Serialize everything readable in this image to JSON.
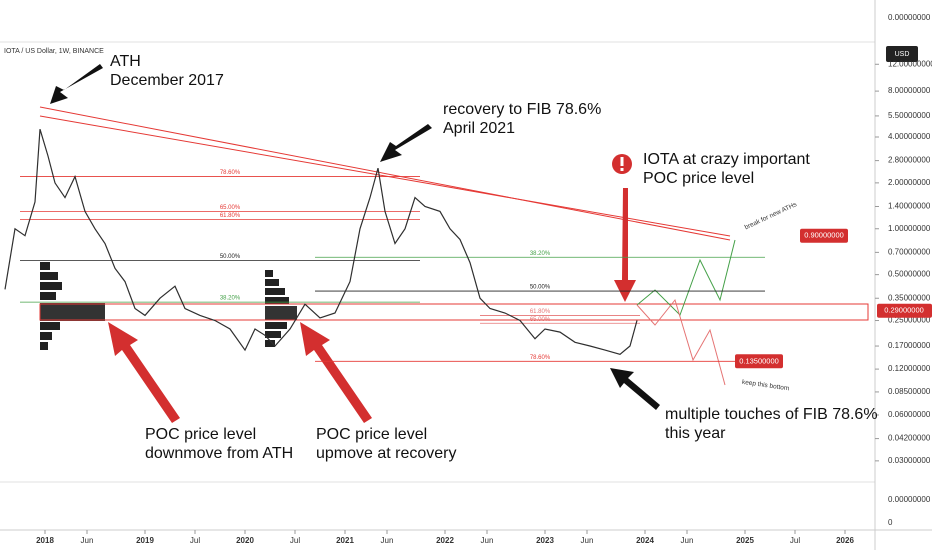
{
  "chart_data": {
    "type": "line",
    "header": "IOTA / US Dollar, 1W, BINANCE",
    "currency": "USD",
    "log_scale": true,
    "color": "#2f2f2f",
    "x": [
      2017.6,
      2017.7,
      2017.8,
      2017.9,
      2017.95,
      2018.03,
      2018.1,
      2018.2,
      2018.3,
      2018.4,
      2018.5,
      2018.6,
      2018.7,
      2018.8,
      2018.9,
      2019.0,
      2019.15,
      2019.3,
      2019.4,
      2019.55,
      2019.7,
      2019.85,
      2020.0,
      2020.1,
      2020.2,
      2020.3,
      2020.45,
      2020.6,
      2020.75,
      2020.9,
      2021.05,
      2021.15,
      2021.25,
      2021.33,
      2021.4,
      2021.5,
      2021.6,
      2021.7,
      2021.8,
      2021.95,
      2022.05,
      2022.15,
      2022.25,
      2022.35,
      2022.45,
      2022.6,
      2022.75,
      2022.9,
      2023.0,
      2023.15,
      2023.3,
      2023.45,
      2023.6,
      2023.75,
      2023.85,
      2023.92
    ],
    "values": [
      0.4,
      1.0,
      0.9,
      1.5,
      4.5,
      3.0,
      2.0,
      1.6,
      2.2,
      1.3,
      1.0,
      0.8,
      0.55,
      0.45,
      0.3,
      0.27,
      0.35,
      0.42,
      0.3,
      0.27,
      0.25,
      0.22,
      0.16,
      0.22,
      0.2,
      0.17,
      0.22,
      0.32,
      0.26,
      0.28,
      0.45,
      1.0,
      1.6,
      2.5,
      1.3,
      0.8,
      1.0,
      1.6,
      1.4,
      1.3,
      1.0,
      0.85,
      0.6,
      0.35,
      0.3,
      0.28,
      0.25,
      0.19,
      0.22,
      0.21,
      0.18,
      0.17,
      0.16,
      0.15,
      0.17,
      0.25
    ],
    "xlim": [
      2017.55,
      2026.3
    ],
    "xticks": [
      2018,
      {
        "value": 2018.42,
        "label": "Jun"
      },
      2019,
      {
        "value": 2019.5,
        "label": "Jul"
      },
      2020,
      {
        "value": 2020.5,
        "label": "Jul"
      },
      2021,
      {
        "value": 2021.42,
        "label": "Jun"
      },
      2022,
      {
        "value": 2022.42,
        "label": "Jun"
      },
      2023,
      {
        "value": 2023.42,
        "label": "Jun"
      },
      2024,
      {
        "value": 2024.42,
        "label": "Jun"
      },
      2025,
      {
        "value": 2025.5,
        "label": "Jul"
      },
      2026
    ],
    "ylim": [
      0.0218,
      16.8
    ],
    "yticks": [
      {
        "value": 12,
        "label": "12.00000000"
      },
      {
        "value": 8,
        "label": "8.00000000"
      },
      {
        "value": 5.5,
        "label": "5.50000000"
      },
      {
        "value": 4,
        "label": "4.00000000"
      },
      {
        "value": 2.8,
        "label": "2.80000000"
      },
      {
        "value": 2,
        "label": "2.00000000"
      },
      {
        "value": 1.4,
        "label": "1.40000000"
      },
      {
        "value": 1,
        "label": "1.00000000"
      },
      {
        "value": 0.7,
        "label": "0.70000000"
      },
      {
        "value": 0.5,
        "label": "0.50000000"
      },
      {
        "value": 0.35,
        "label": "0.35000000"
      },
      {
        "value": 0.25,
        "label": "0.25000000"
      },
      {
        "value": 0.17,
        "label": "0.17000000"
      },
      {
        "value": 0.12,
        "label": "0.12000000"
      },
      {
        "value": 0.085,
        "label": "0.08500000"
      },
      {
        "value": 0.06,
        "label": "0.06000000"
      },
      {
        "value": 0.042,
        "label": "0.04200000"
      },
      {
        "value": 0.03,
        "label": "0.03000000"
      }
    ],
    "pane_ticks": [
      "0.00000000",
      "0.00000000",
      "0"
    ],
    "levels": [
      {
        "label": "78.60%",
        "value": 2.2,
        "color": "#e53935"
      },
      {
        "label": "65.00%",
        "value": 1.3,
        "color": "#e53935"
      },
      {
        "label": "61.80%",
        "value": 1.15,
        "color": "#e53935"
      },
      {
        "label": "50.00%",
        "value": 0.62,
        "color": "#222222"
      },
      {
        "label": "38.20%",
        "value": 0.33,
        "color": "#43a047"
      },
      {
        "label": "38.20%",
        "value": 0.65,
        "color": "#43a047"
      },
      {
        "label": "50.00%",
        "value": 0.39,
        "color": "#222222"
      },
      {
        "label": "61.80%",
        "value": 0.27,
        "color": "#e57373"
      },
      {
        "label": "65.00%",
        "value": 0.24,
        "color": "#e57373"
      },
      {
        "label": "78.60%",
        "value": 0.135,
        "color": "#e53935"
      }
    ],
    "price_tags": [
      {
        "value": 0.29,
        "label": "0.29000000"
      },
      {
        "value": 0.9,
        "label": "0.90000000"
      },
      {
        "value": 0.135,
        "label": "0.13500000"
      }
    ],
    "annotations": [
      [
        "ATH",
        "December 2017"
      ],
      [
        "recovery to FIB 78.6%",
        "April 2021"
      ],
      [
        "IOTA at crazy important",
        "POC price level"
      ],
      [
        "POC price level",
        "downmove from ATH"
      ],
      [
        "POC price level",
        "upmove at recovery"
      ],
      [
        "multiple touches of FIB 78.6%",
        "this year"
      ]
    ],
    "notes": [
      "break for new ATHs",
      "keep this bottom"
    ]
  }
}
